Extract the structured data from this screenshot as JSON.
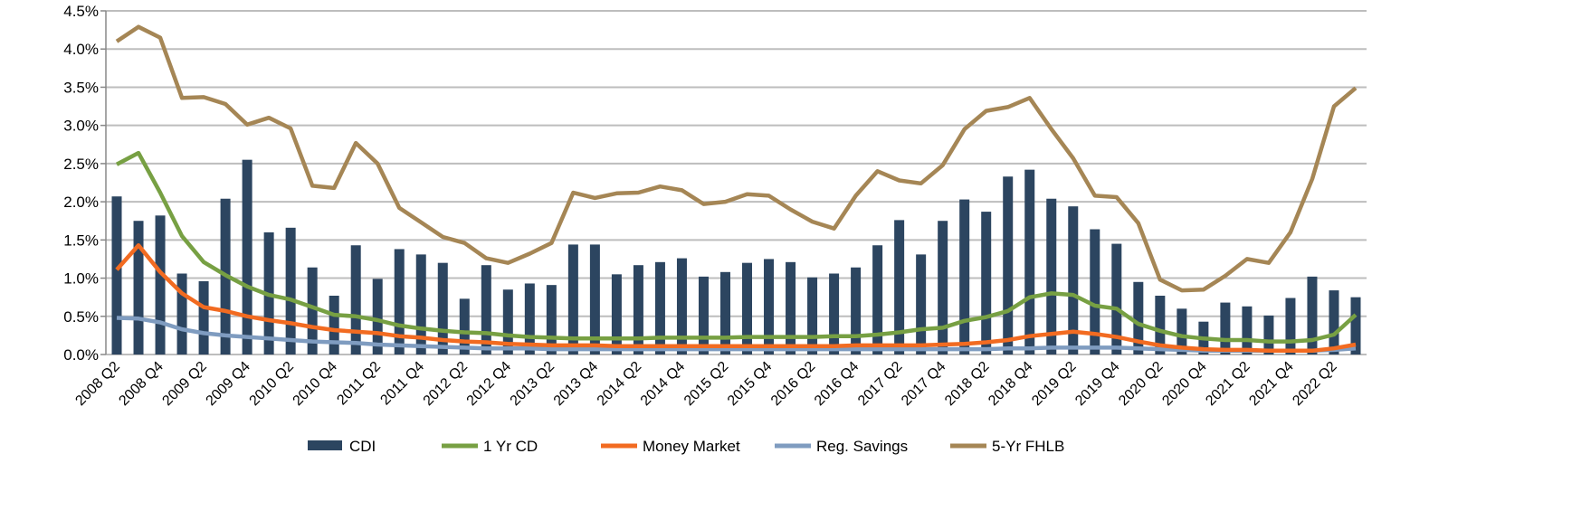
{
  "chart_data": {
    "type": "bar+line",
    "title": "",
    "xlabel": "",
    "ylabel": "",
    "ylim": [
      0,
      4.5
    ],
    "yticks": [
      "0.0%",
      "0.5%",
      "1.0%",
      "1.5%",
      "2.0%",
      "2.5%",
      "3.0%",
      "3.5%",
      "4.0%",
      "4.5%"
    ],
    "grid": true,
    "legend_position": "bottom",
    "categories": [
      "2008 Q2",
      "2008 Q3",
      "2008 Q4",
      "2009 Q1",
      "2009 Q2",
      "2009 Q3",
      "2009 Q4",
      "2010 Q1",
      "2010 Q2",
      "2010 Q3",
      "2010 Q4",
      "2011 Q1",
      "2011 Q2",
      "2011 Q3",
      "2011 Q4",
      "2012 Q1",
      "2012 Q2",
      "2012 Q3",
      "2012 Q4",
      "2013 Q1",
      "2013 Q2",
      "2013 Q3",
      "2013 Q4",
      "2014 Q1",
      "2014 Q2",
      "2014 Q3",
      "2014 Q4",
      "2015 Q1",
      "2015 Q2",
      "2015 Q3",
      "2015 Q4",
      "2016 Q1",
      "2016 Q2",
      "2016 Q3",
      "2016 Q4",
      "2017 Q1",
      "2017 Q2",
      "2017 Q3",
      "2017 Q4",
      "2018 Q1",
      "2018 Q2",
      "2018 Q3",
      "2018 Q4",
      "2019 Q1",
      "2019 Q2",
      "2019 Q3",
      "2019 Q4",
      "2020 Q1",
      "2020 Q2",
      "2020 Q3",
      "2020 Q4",
      "2021 Q1",
      "2021 Q2",
      "2021 Q3",
      "2021 Q4",
      "2022 Q1",
      "2022 Q2",
      "2022 Q3"
    ],
    "series": [
      {
        "name": "CDI",
        "kind": "bar",
        "color": "#2c4560",
        "values": [
          2.07,
          1.75,
          1.82,
          1.06,
          0.96,
          2.04,
          2.55,
          1.6,
          1.66,
          1.14,
          0.77,
          1.43,
          0.99,
          1.38,
          1.31,
          1.2,
          0.73,
          1.17,
          0.85,
          0.93,
          0.91,
          1.44,
          1.44,
          1.05,
          1.17,
          1.21,
          1.26,
          1.02,
          1.08,
          1.2,
          1.25,
          1.21,
          1.01,
          1.06,
          1.14,
          1.43,
          1.76,
          1.31,
          1.75,
          2.03,
          1.87,
          2.33,
          2.42,
          2.04,
          1.94,
          1.64,
          1.45,
          0.95,
          0.77,
          0.6,
          0.43,
          0.68,
          0.63,
          0.51,
          0.74,
          1.02,
          0.84,
          0.75
        ]
      },
      {
        "name": "1 Yr CD",
        "kind": "line",
        "color": "#77a043",
        "values": [
          2.49,
          2.64,
          2.12,
          1.55,
          1.21,
          1.04,
          0.89,
          0.78,
          0.72,
          0.62,
          0.52,
          0.5,
          0.45,
          0.38,
          0.34,
          0.31,
          0.29,
          0.28,
          0.25,
          0.23,
          0.22,
          0.21,
          0.21,
          0.21,
          0.21,
          0.22,
          0.22,
          0.22,
          0.22,
          0.23,
          0.23,
          0.23,
          0.23,
          0.24,
          0.24,
          0.26,
          0.29,
          0.33,
          0.35,
          0.44,
          0.49,
          0.57,
          0.75,
          0.8,
          0.78,
          0.64,
          0.6,
          0.4,
          0.31,
          0.24,
          0.21,
          0.19,
          0.19,
          0.17,
          0.17,
          0.19,
          0.26,
          0.52
        ]
      },
      {
        "name": "Money Market",
        "kind": "line",
        "color": "#f26b21",
        "values": [
          1.11,
          1.43,
          1.08,
          0.8,
          0.62,
          0.57,
          0.5,
          0.45,
          0.41,
          0.36,
          0.32,
          0.3,
          0.28,
          0.24,
          0.22,
          0.19,
          0.17,
          0.16,
          0.14,
          0.13,
          0.12,
          0.12,
          0.12,
          0.11,
          0.11,
          0.11,
          0.11,
          0.11,
          0.11,
          0.11,
          0.11,
          0.11,
          0.11,
          0.11,
          0.12,
          0.12,
          0.12,
          0.12,
          0.13,
          0.14,
          0.16,
          0.19,
          0.24,
          0.27,
          0.3,
          0.27,
          0.23,
          0.17,
          0.12,
          0.09,
          0.07,
          0.06,
          0.06,
          0.05,
          0.05,
          0.05,
          0.08,
          0.13
        ]
      },
      {
        "name": "Reg. Savings",
        "kind": "line",
        "color": "#7f9cc0",
        "values": [
          0.48,
          0.47,
          0.42,
          0.33,
          0.28,
          0.25,
          0.23,
          0.21,
          0.19,
          0.17,
          0.16,
          0.15,
          0.13,
          0.12,
          0.11,
          0.1,
          0.09,
          0.08,
          0.08,
          0.08,
          0.07,
          0.07,
          0.07,
          0.07,
          0.07,
          0.07,
          0.07,
          0.07,
          0.07,
          0.07,
          0.07,
          0.07,
          0.07,
          0.07,
          0.07,
          0.07,
          0.07,
          0.07,
          0.07,
          0.07,
          0.07,
          0.08,
          0.08,
          0.09,
          0.09,
          0.09,
          0.09,
          0.08,
          0.07,
          0.06,
          0.05,
          0.05,
          0.05,
          0.05,
          0.05,
          0.05,
          0.06,
          0.08
        ]
      },
      {
        "name": "5-Yr FHLB",
        "kind": "line",
        "color": "#a58655",
        "values": [
          4.1,
          4.29,
          4.15,
          3.36,
          3.37,
          3.28,
          3.01,
          3.1,
          2.96,
          2.21,
          2.18,
          2.77,
          2.5,
          1.92,
          1.73,
          1.54,
          1.46,
          1.26,
          1.2,
          1.32,
          1.46,
          2.12,
          2.05,
          2.11,
          2.12,
          2.2,
          2.15,
          1.97,
          2.0,
          2.1,
          2.08,
          1.9,
          1.74,
          1.65,
          2.08,
          2.4,
          2.28,
          2.24,
          2.48,
          2.95,
          3.19,
          3.24,
          3.36,
          2.95,
          2.57,
          2.08,
          2.06,
          1.72,
          0.98,
          0.84,
          0.85,
          1.03,
          1.25,
          1.2,
          1.6,
          2.3,
          3.25,
          3.49
        ]
      }
    ]
  }
}
